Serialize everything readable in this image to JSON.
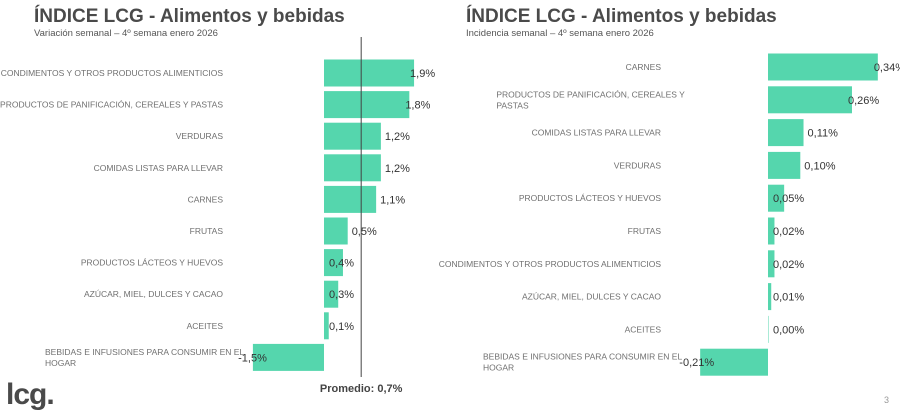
{
  "charts_meta": {
    "logo": "lcg.",
    "page_number": "3"
  },
  "chart_data": [
    {
      "type": "bar",
      "orientation": "horizontal",
      "title": "ÍNDICE LCG - Alimentos y bebidas",
      "subtitle": "Variación semanal – 4º semana enero 2026",
      "categories": [
        "CONDIMENTOS Y OTROS PRODUCTOS ALIMENTICIOS",
        "PRODUCTOS DE PANIFICACIÓN, CEREALES Y PASTAS",
        "VERDURAS",
        "COMIDAS LISTAS PARA LLEVAR",
        "CARNES",
        "FRUTAS",
        "PRODUCTOS LÁCTEOS Y HUEVOS",
        "AZÚCAR, MIEL, DULCES Y CACAO",
        "ACEITES",
        "BEBIDAS E INFUSIONES PARA CONSUMIR EN EL HOGAR"
      ],
      "values": [
        1.9,
        1.8,
        1.2,
        1.2,
        1.1,
        0.5,
        0.4,
        0.3,
        0.1,
        -1.5
      ],
      "data_labels": [
        "1,9%",
        "1,8%",
        "1,2%",
        "1,2%",
        "1,1%",
        "0,5%",
        "0,4%",
        "0,3%",
        "0,1%",
        "-1,5%"
      ],
      "reference_line": {
        "value": 0.7,
        "label": "Promedio: 0,7%"
      },
      "unit": "%",
      "bar_color": "#55d6ad",
      "grid": false
    },
    {
      "type": "bar",
      "orientation": "horizontal",
      "title": "ÍNDICE LCG - Alimentos y bebidas",
      "subtitle": "Incidencia semanal – 4º semana enero 2026",
      "categories": [
        "CARNES",
        "PRODUCTOS DE PANIFICACIÓN, CEREALES Y PASTAS",
        "COMIDAS LISTAS PARA LLEVAR",
        "VERDURAS",
        "PRODUCTOS LÁCTEOS Y HUEVOS",
        "FRUTAS",
        "CONDIMENTOS Y OTROS PRODUCTOS ALIMENTICIOS",
        "AZÚCAR, MIEL, DULCES Y CACAO",
        "ACEITES",
        "BEBIDAS E INFUSIONES PARA CONSUMIR EN EL HOGAR"
      ],
      "values": [
        0.34,
        0.26,
        0.11,
        0.1,
        0.05,
        0.02,
        0.02,
        0.01,
        0.0,
        -0.21
      ],
      "data_labels": [
        "0,34%",
        "0,26%",
        "0,11%",
        "0,10%",
        "0,05%",
        "0,02%",
        "0,02%",
        "0,01%",
        "0,00%",
        "-0,21%"
      ],
      "unit": "%",
      "bar_color": "#55d6ad",
      "grid": false
    }
  ]
}
